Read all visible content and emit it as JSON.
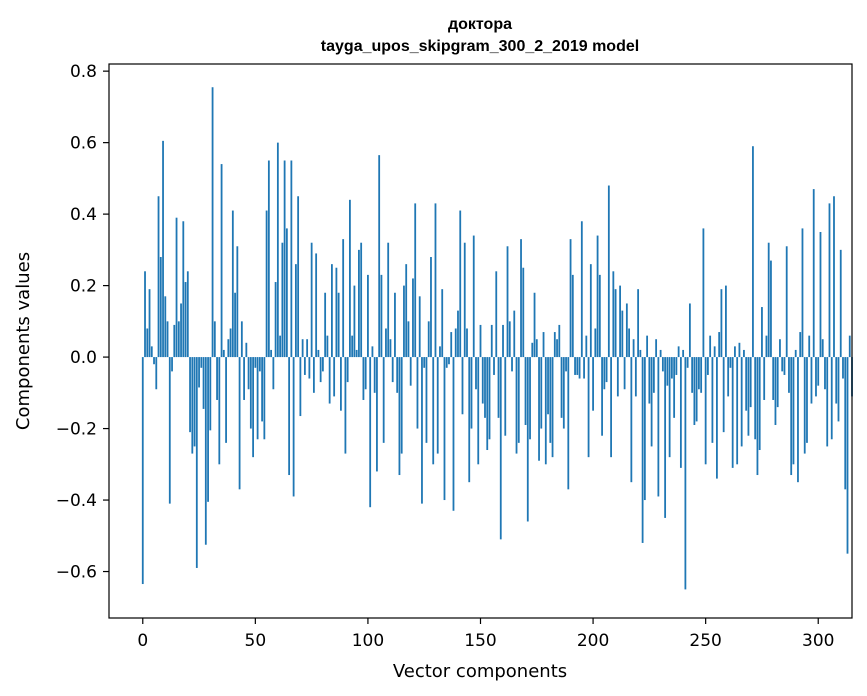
{
  "chart_data": {
    "type": "bar",
    "title_line1": "доктора",
    "title_line2": "tayga_upos_skipgram_300_2_2019 model",
    "xlabel": "Vector components",
    "ylabel": "Components values",
    "xlim": [
      -15,
      315
    ],
    "ylim": [
      -0.73,
      0.82
    ],
    "xticks": [
      0,
      50,
      100,
      150,
      200,
      250,
      300
    ],
    "xtick_labels": [
      "0",
      "50",
      "100",
      "150",
      "200",
      "250",
      "300"
    ],
    "yticks": [
      -0.6,
      -0.4,
      -0.2,
      0.0,
      0.2,
      0.4,
      0.6,
      0.8
    ],
    "ytick_labels": [
      "−0.6",
      "−0.4",
      "−0.2",
      "0.0",
      "0.2",
      "0.4",
      "0.6",
      "0.8"
    ],
    "bar_color": "#1f77b4",
    "values": [
      -0.635,
      0.24,
      0.08,
      0.19,
      0.03,
      -0.02,
      -0.09,
      0.45,
      0.28,
      0.605,
      0.17,
      0.1,
      -0.41,
      -0.04,
      0.09,
      0.39,
      0.1,
      0.15,
      0.38,
      0.21,
      0.24,
      -0.21,
      -0.27,
      -0.25,
      -0.59,
      -0.085,
      -0.03,
      -0.145,
      -0.525,
      -0.405,
      -0.205,
      0.755,
      0.1,
      -0.12,
      -0.3,
      0.54,
      0.02,
      -0.24,
      0.05,
      0.08,
      0.41,
      0.18,
      0.31,
      -0.37,
      0.1,
      -0.12,
      0.04,
      -0.09,
      -0.2,
      -0.28,
      -0.03,
      -0.23,
      -0.04,
      -0.18,
      -0.23,
      0.41,
      0.55,
      0.02,
      -0.09,
      0.21,
      0.6,
      0.06,
      0.32,
      0.55,
      0.36,
      -0.33,
      0.55,
      -0.39,
      0.26,
      0.45,
      -0.165,
      0.05,
      -0.05,
      0.05,
      -0.06,
      0.32,
      -0.1,
      0.29,
      0.02,
      -0.07,
      -0.04,
      0.18,
      0.06,
      -0.13,
      0.26,
      -0.11,
      0.25,
      0.18,
      -0.15,
      0.33,
      -0.27,
      -0.07,
      0.44,
      0.06,
      0.2,
      0.02,
      0.3,
      0.32,
      -0.12,
      -0.09,
      0.23,
      -0.42,
      0.03,
      -0.1,
      -0.32,
      0.565,
      0.23,
      -0.24,
      0.08,
      0.32,
      0.05,
      -0.07,
      0.18,
      -0.1,
      -0.33,
      -0.27,
      0.2,
      0.26,
      0.1,
      -0.08,
      0.22,
      0.43,
      -0.2,
      0.17,
      -0.41,
      -0.03,
      -0.24,
      0.1,
      0.28,
      -0.3,
      0.43,
      -0.27,
      0.03,
      0.19,
      -0.4,
      -0.03,
      -0.02,
      0.07,
      -0.43,
      0.08,
      0.13,
      0.41,
      -0.16,
      0.32,
      0.08,
      -0.35,
      -0.2,
      0.34,
      -0.09,
      -0.3,
      0.09,
      -0.13,
      -0.17,
      -0.26,
      -0.23,
      0.09,
      -0.05,
      0.24,
      -0.17,
      -0.51,
      0.09,
      -0.22,
      0.31,
      0.1,
      -0.04,
      0.13,
      -0.27,
      -0.24,
      0.33,
      0.25,
      -0.19,
      -0.46,
      -0.23,
      0.04,
      0.18,
      0.05,
      -0.29,
      -0.2,
      0.07,
      -0.3,
      -0.16,
      -0.24,
      -0.28,
      0.07,
      0.05,
      0.09,
      -0.17,
      -0.2,
      -0.04,
      -0.37,
      0.33,
      0.23,
      -0.05,
      -0.05,
      -0.06,
      0.38,
      -0.06,
      0.06,
      -0.28,
      0.26,
      -0.15,
      0.08,
      0.34,
      0.23,
      -0.22,
      -0.09,
      -0.07,
      0.48,
      -0.28,
      0.24,
      0.19,
      -0.11,
      0.2,
      0.13,
      -0.09,
      0.15,
      0.08,
      -0.35,
      0.05,
      -0.11,
      0.19,
      0.02,
      -0.52,
      -0.4,
      0.06,
      -0.13,
      -0.25,
      -0.1,
      0.05,
      -0.39,
      0.02,
      -0.04,
      -0.45,
      -0.08,
      -0.28,
      -0.06,
      -0.17,
      -0.05,
      0.03,
      -0.31,
      0.02,
      -0.65,
      -0.03,
      0.15,
      -0.1,
      -0.19,
      -0.18,
      -0.09,
      -0.1,
      0.36,
      -0.3,
      -0.05,
      0.06,
      -0.24,
      0.03,
      -0.34,
      0.07,
      0.19,
      -0.21,
      0.2,
      -0.11,
      -0.03,
      -0.31,
      0.03,
      -0.3,
      0.04,
      -0.25,
      0.02,
      -0.15,
      -0.22,
      -0.14,
      0.59,
      -0.23,
      -0.33,
      -0.26,
      0.14,
      -0.12,
      0.06,
      0.32,
      0.27,
      -0.12,
      -0.19,
      -0.14,
      0.05,
      -0.04,
      -0.05,
      0.31,
      -0.1,
      -0.33,
      -0.3,
      0.02,
      -0.35,
      0.07,
      0.36,
      -0.27,
      -0.24,
      0.06,
      -0.13,
      0.47,
      -0.11,
      -0.08,
      0.35,
      0.05,
      -0.09,
      -0.25,
      0.43,
      -0.23,
      0.45,
      -0.13,
      -0.18,
      0.3,
      -0.06,
      -0.37,
      -0.55,
      0.06,
      -0.11
    ]
  }
}
